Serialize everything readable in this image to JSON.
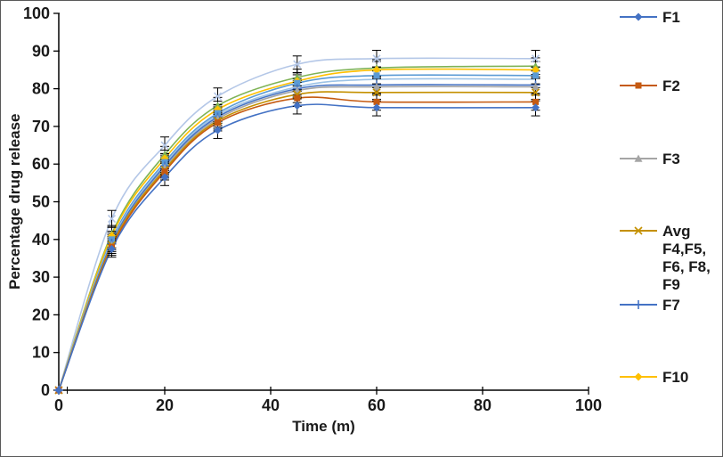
{
  "chart_data": {
    "type": "line",
    "title": "",
    "xlabel": "Time (m)",
    "ylabel": "Percentage drug release",
    "xlim": [
      0,
      100
    ],
    "ylim": [
      0,
      100
    ],
    "x_ticks": [
      0,
      20,
      40,
      60,
      80,
      100
    ],
    "y_ticks": [
      0,
      10,
      20,
      30,
      40,
      50,
      60,
      70,
      80,
      90,
      100
    ],
    "grid": false,
    "legend_position": "right",
    "line_style": "smooth",
    "error_bar_y": 2.2,
    "error_bar_x_at_origin": 1.6,
    "x": [
      0,
      10,
      20,
      30,
      45,
      60,
      90
    ],
    "series": [
      {
        "name": "unlabeled-line-1",
        "in_legend": false,
        "color": "#b4c7e7",
        "marker": "x",
        "values": [
          0,
          45.5,
          65.0,
          78.0,
          86.5,
          88.0,
          88.0
        ]
      },
      {
        "name": "unlabeled-line-2",
        "in_legend": false,
        "color": "#7fb356",
        "marker": "triangle",
        "values": [
          0,
          41.5,
          62.5,
          75.5,
          83.0,
          85.5,
          86.0
        ]
      },
      {
        "name": "F10",
        "in_legend": true,
        "color": "#ffc000",
        "marker": "diamond",
        "values": [
          0,
          41.0,
          61.5,
          74.5,
          82.0,
          85.0,
          85.0
        ]
      },
      {
        "name": "unlabeled-line-3",
        "in_legend": false,
        "color": "#5b9bd5",
        "marker": "square",
        "values": [
          0,
          40.0,
          60.5,
          73.5,
          81.5,
          83.5,
          83.5
        ]
      },
      {
        "name": "unlabeled-line-4",
        "in_legend": false,
        "color": "#9dc3e6",
        "marker": "none",
        "values": [
          0,
          39.5,
          60.0,
          73.0,
          80.5,
          82.5,
          82.5
        ]
      },
      {
        "name": "F7",
        "in_legend": true,
        "color": "#4472c4",
        "marker": "plus",
        "values": [
          0,
          39.0,
          59.5,
          72.5,
          80.0,
          81.0,
          81.0
        ]
      },
      {
        "name": "F3",
        "in_legend": true,
        "color": "#a5a5a5",
        "marker": "triangle",
        "values": [
          0,
          38.5,
          59.0,
          72.0,
          79.5,
          80.5,
          80.5
        ]
      },
      {
        "name": "Avg F4,F5, F6, F8, F9",
        "in_legend": true,
        "color": "#c49000",
        "marker": "x",
        "values": [
          0,
          38.5,
          58.5,
          71.5,
          78.5,
          79.0,
          79.0
        ]
      },
      {
        "name": "F2",
        "in_legend": true,
        "color": "#c55a11",
        "marker": "square",
        "values": [
          0,
          38.0,
          58.0,
          71.0,
          77.5,
          76.5,
          76.5
        ]
      },
      {
        "name": "F1",
        "in_legend": true,
        "color": "#4472c4",
        "marker": "diamond",
        "values": [
          0,
          37.5,
          56.5,
          69.0,
          75.5,
          75.0,
          75.0
        ]
      }
    ]
  },
  "legend": {
    "entries": [
      {
        "label": "F1",
        "color": "#4472c4",
        "marker": "diamond"
      },
      {
        "label": "F2",
        "color": "#c55a11",
        "marker": "square"
      },
      {
        "label": "F3",
        "color": "#a5a5a5",
        "marker": "triangle"
      },
      {
        "label": "Avg F4,F5, F6, F8, F9",
        "color": "#c49000",
        "marker": "x"
      },
      {
        "label": "F7",
        "color": "#4472c4",
        "marker": "plus"
      },
      {
        "label": "F10",
        "color": "#ffc000",
        "marker": "diamond"
      }
    ]
  },
  "colors": {
    "axis": "#000000",
    "text": "#1a1a1a",
    "error_bar": "#000000",
    "frame_border": "#595959"
  }
}
